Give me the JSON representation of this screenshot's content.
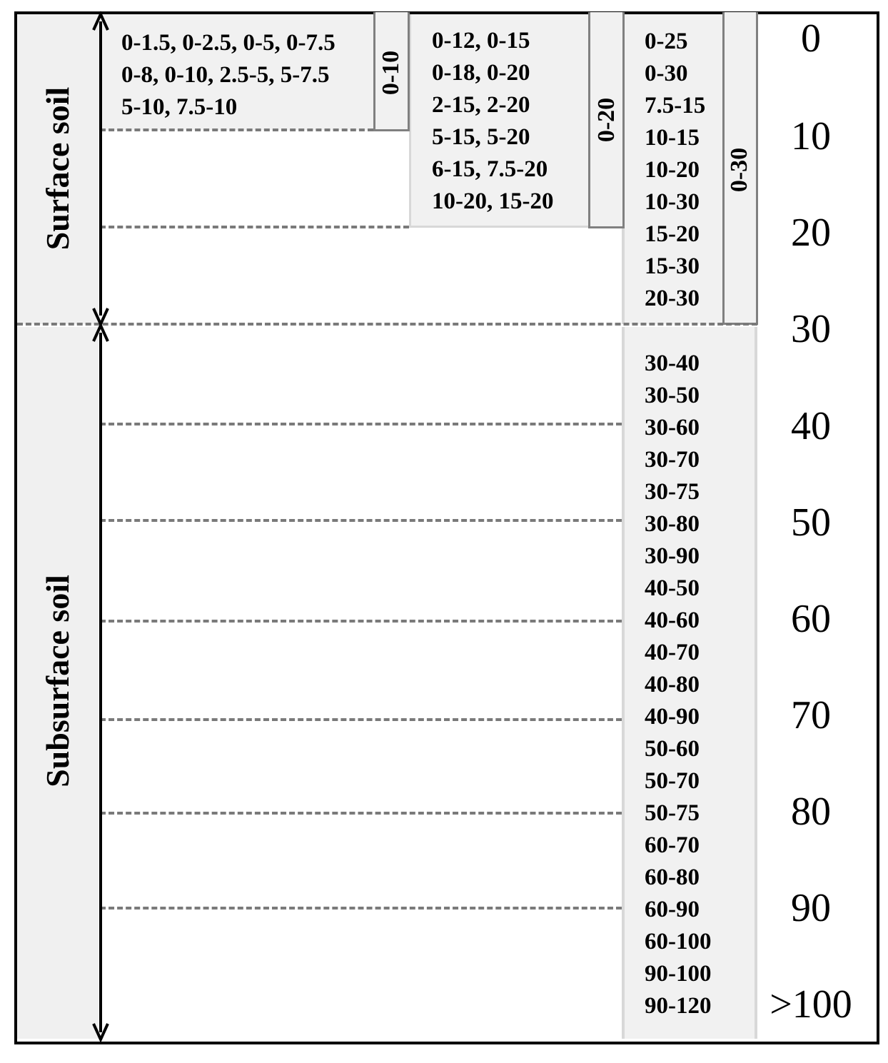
{
  "sections": {
    "surface_label": "Surface soil",
    "subsurface_label": "Subsurface soil"
  },
  "groups": {
    "g0_10": {
      "label": "0-10",
      "lines": [
        "0-1.5, 0-2.5, 0-5, 0-7.5",
        "0-8, 0-10, 2.5-5,  5-7.5",
        "5-10, 7.5-10"
      ]
    },
    "g0_20": {
      "label": "0-20",
      "lines": [
        "0-12, 0-15",
        "0-18, 0-20",
        "2-15, 2-20",
        "5-15, 5-20",
        "6-15, 7.5-20",
        "10-20, 15-20"
      ]
    },
    "g0_30": {
      "label": "0-30",
      "lines": [
        "0-25",
        "0-30",
        "7.5-15",
        "10-15",
        "10-20",
        "10-30",
        "15-20",
        "15-30",
        "20-30"
      ]
    },
    "g30plus": {
      "lines": [
        "30-40",
        "30-50",
        "30-60",
        "30-70",
        "30-75",
        "30-80",
        "30-90",
        "40-50",
        "40-60",
        "40-70",
        "40-80",
        "40-90",
        "50-60",
        "50-70",
        "50-75",
        "60-70",
        "60-80",
        "60-90",
        "60-100",
        "90-100",
        "90-120"
      ]
    }
  },
  "depth_scale": [
    "0",
    "10",
    "20",
    "30",
    "40",
    "50",
    "60",
    "70",
    "80",
    "90",
    ">100"
  ]
}
